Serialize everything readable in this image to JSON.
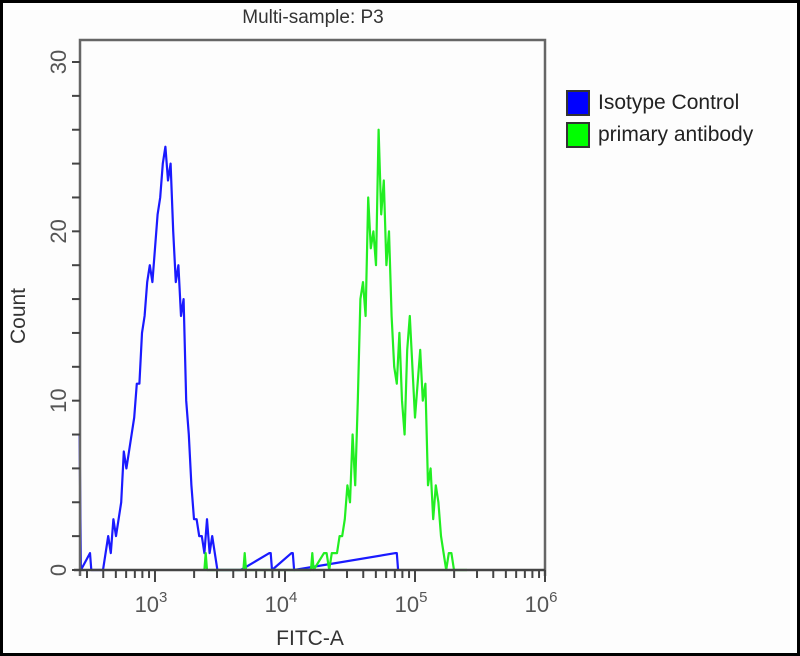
{
  "chart_data": {
    "type": "histogram",
    "title": "Multi-sample: P3",
    "xlabel": "FITC-A",
    "ylabel": "Count",
    "xscale": "log",
    "xlim": [
      265,
      1000000
    ],
    "ylim": [
      0,
      31
    ],
    "xticks": [
      {
        "value": 1000,
        "label": "10",
        "exp": "3"
      },
      {
        "value": 10000,
        "label": "10",
        "exp": "4"
      },
      {
        "value": 100000,
        "label": "10",
        "exp": "5"
      },
      {
        "value": 1000000,
        "label": "10",
        "exp": "6"
      }
    ],
    "yticks": [
      0,
      10,
      20,
      30
    ],
    "legend": [
      {
        "label": "Isotype Control",
        "color": "#0000ff"
      },
      {
        "label": "primary antibody",
        "color": "#00ff00"
      }
    ],
    "series": [
      {
        "name": "Isotype Control",
        "color": "#1a1aff",
        "log10_x": [
          2.42,
          2.43,
          2.5,
          2.51,
          2.53,
          2.55,
          2.6,
          2.62,
          2.64,
          2.66,
          2.68,
          2.7,
          2.72,
          2.74,
          2.76,
          2.78,
          2.8,
          2.82,
          2.84,
          2.86,
          2.88,
          2.9,
          2.92,
          2.94,
          2.96,
          2.98,
          3.0,
          3.02,
          3.04,
          3.06,
          3.08,
          3.1,
          3.12,
          3.14,
          3.16,
          3.18,
          3.2,
          3.22,
          3.24,
          3.26,
          3.28,
          3.3,
          3.32,
          3.34,
          3.36,
          3.38,
          3.4,
          3.42,
          3.44,
          3.46,
          3.48,
          3.5,
          3.52,
          3.54,
          3.56,
          3.58,
          3.62,
          3.64,
          3.66,
          3.88,
          3.89,
          3.9,
          4.05,
          4.06,
          4.07,
          4.85,
          4.86,
          4.87
        ],
        "counts": [
          8,
          0,
          1,
          0,
          0,
          0,
          0,
          1,
          2,
          1,
          3,
          2,
          3,
          4,
          7,
          6,
          7,
          8,
          9,
          11,
          11,
          14,
          15,
          17,
          18,
          17,
          19,
          21,
          22,
          24,
          25,
          23,
          24,
          20,
          17,
          18,
          15,
          16,
          10,
          8,
          5,
          3,
          3,
          2,
          2,
          1,
          3,
          1,
          2,
          1,
          0,
          0,
          0,
          0,
          0,
          0,
          0,
          0,
          0,
          1,
          1,
          0,
          1,
          1,
          0,
          1,
          1,
          0
        ]
      },
      {
        "name": "primary antibody",
        "color": "#22ee22",
        "log10_x": [
          3.38,
          3.39,
          3.4,
          3.68,
          3.69,
          3.7,
          4.2,
          4.21,
          4.22,
          4.3,
          4.32,
          4.34,
          4.36,
          4.38,
          4.4,
          4.42,
          4.44,
          4.46,
          4.48,
          4.5,
          4.52,
          4.54,
          4.56,
          4.58,
          4.6,
          4.62,
          4.64,
          4.66,
          4.68,
          4.7,
          4.72,
          4.74,
          4.76,
          4.78,
          4.8,
          4.82,
          4.84,
          4.86,
          4.88,
          4.9,
          4.92,
          4.94,
          4.96,
          4.98,
          5.0,
          5.02,
          5.04,
          5.06,
          5.08,
          5.1,
          5.12,
          5.14,
          5.16,
          5.18,
          5.2,
          5.22,
          5.24,
          5.26,
          5.28,
          5.3,
          5.32,
          5.34,
          5.36,
          5.38,
          5.4
        ],
        "counts": [
          0,
          1,
          0,
          0,
          1,
          0,
          0,
          1,
          0,
          1,
          1,
          0,
          1,
          1,
          1,
          2,
          2,
          3,
          5,
          4,
          8,
          5,
          10,
          16,
          17,
          15,
          22,
          19,
          20,
          18,
          26,
          21,
          23,
          18,
          20,
          15,
          12,
          11,
          14,
          10,
          8,
          13,
          15,
          12,
          9,
          11,
          13,
          10,
          11,
          5,
          6,
          3,
          5,
          4,
          2,
          1,
          0,
          1,
          1,
          0,
          0,
          0,
          0,
          0,
          0
        ]
      }
    ]
  }
}
